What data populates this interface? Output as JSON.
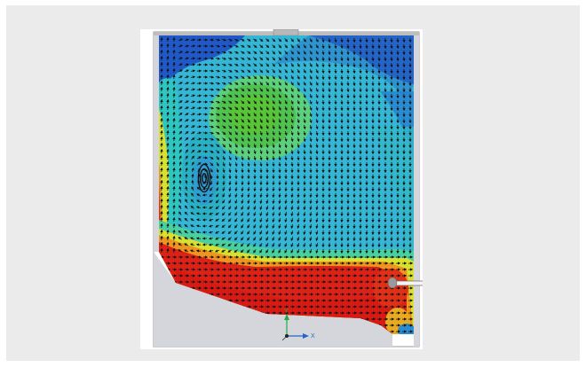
{
  "figure": {
    "description_hidden": "",
    "axes": {
      "y_label": "Y",
      "x_label": "X"
    },
    "colors": {
      "page_bg": "#ebebeb",
      "card_bg": "#ffffff",
      "domain_gray": "#d8d8dc",
      "blue": "#1e50c8",
      "cyan": "#28b4d2",
      "green": "#4cc84c",
      "yellow": "#e6dc28",
      "red": "#dc1e14",
      "arrow": "#111111",
      "triad_y": "#22aa44",
      "triad_x": "#2266cc"
    }
  }
}
